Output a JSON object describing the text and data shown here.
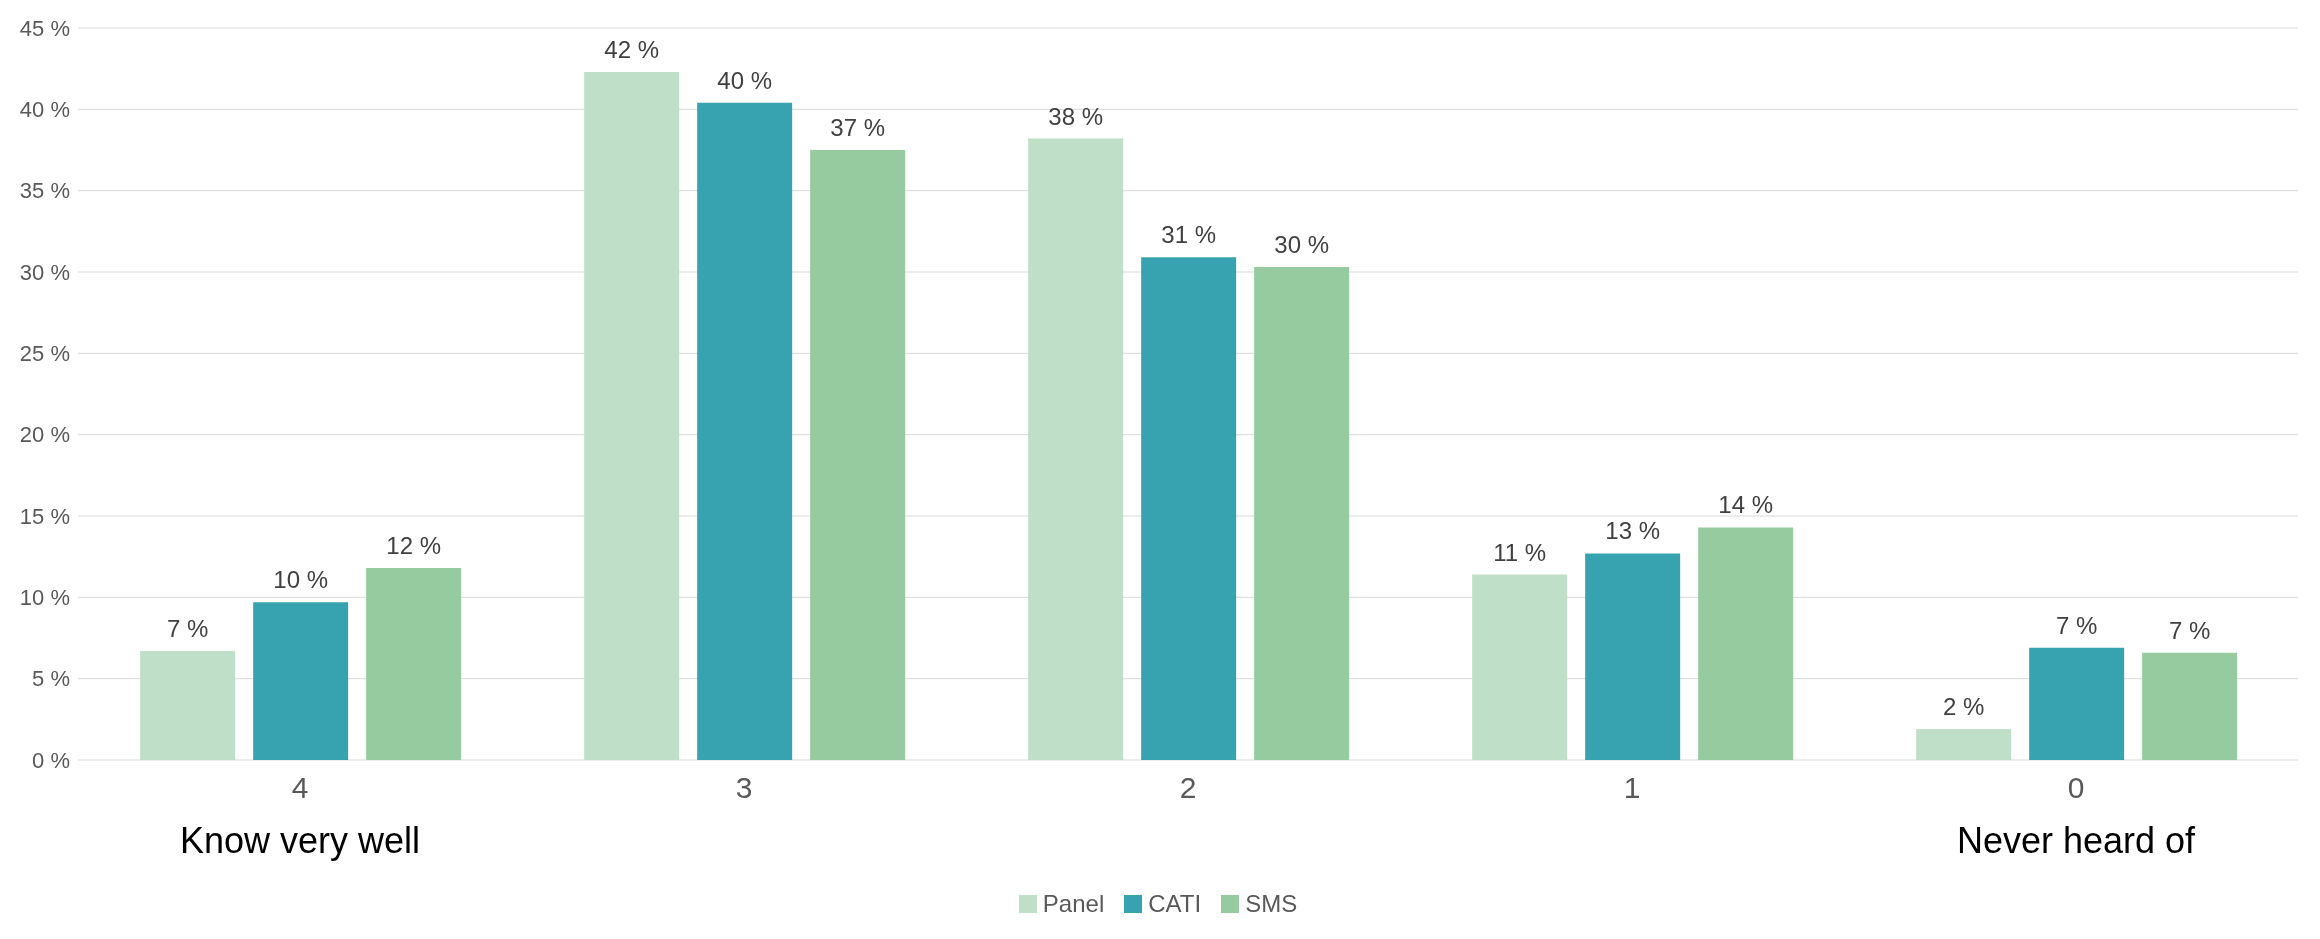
{
  "chart_data": {
    "type": "bar",
    "categories": [
      "4",
      "3",
      "2",
      "1",
      "0"
    ],
    "series": [
      {
        "name": "Panel",
        "color": "#c0dfc8",
        "values": [
          6.7,
          42.3,
          38.2,
          11.4,
          1.9
        ],
        "value_labels": [
          "7 %",
          "42 %",
          "38 %",
          "11 %",
          "2 %"
        ]
      },
      {
        "name": "CATI",
        "color": "#38a3b0",
        "values": [
          9.7,
          40.4,
          30.9,
          12.7,
          6.9
        ],
        "value_labels": [
          "10 %",
          "40 %",
          "31 %",
          "13 %",
          "7 %"
        ]
      },
      {
        "name": "SMS",
        "color": "#95cb9f",
        "values": [
          11.8,
          37.5,
          30.3,
          14.3,
          6.6
        ],
        "value_labels": [
          "12 %",
          "37 %",
          "30 %",
          "14 %",
          "7 %"
        ]
      }
    ],
    "ylim": [
      0,
      45
    ],
    "yticks": [
      {
        "value": 0,
        "label": "0 %"
      },
      {
        "value": 5,
        "label": "5 %"
      },
      {
        "value": 10,
        "label": "10 %"
      },
      {
        "value": 15,
        "label": "15 %"
      },
      {
        "value": 20,
        "label": "20 %"
      },
      {
        "value": 25,
        "label": "25 %"
      },
      {
        "value": 30,
        "label": "30 %"
      },
      {
        "value": 35,
        "label": "35 %"
      },
      {
        "value": 40,
        "label": "40 %"
      },
      {
        "value": 45,
        "label": "45 %"
      }
    ],
    "grid": "y",
    "legend": "bottom",
    "annotations": [
      "Know very well",
      "Never heard of"
    ]
  }
}
